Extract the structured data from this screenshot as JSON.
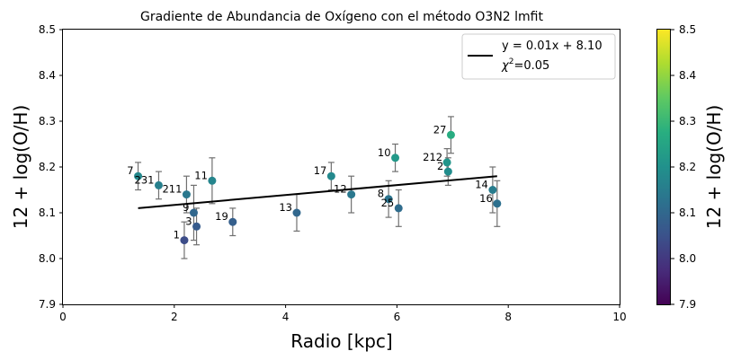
{
  "chart_data": {
    "type": "scatter",
    "title": "Gradiente de Abundancia de Oxígeno con el método O3N2 lmfit",
    "xlabel": "Radio [kpc]",
    "ylabel": "12 + log(O/H)",
    "xlim": [
      0,
      10
    ],
    "ylim": [
      7.9,
      8.5
    ],
    "xticks": [
      "0",
      "2",
      "4",
      "6",
      "8",
      "10"
    ],
    "yticks": [
      "7.9",
      "8.0",
      "8.1",
      "8.2",
      "8.3",
      "8.4",
      "8.5"
    ],
    "colormap": "viridis",
    "colorbar": {
      "label": "12 + log(O/H)",
      "range": [
        7.9,
        8.5
      ],
      "ticks": [
        "7.9",
        "8.0",
        "8.1",
        "8.2",
        "8.3",
        "8.4",
        "8.5"
      ]
    },
    "points": [
      {
        "label": "7",
        "x": 1.35,
        "y": 8.18,
        "err": 0.03
      },
      {
        "label": "231",
        "x": 1.72,
        "y": 8.16,
        "err": 0.03
      },
      {
        "label": "211",
        "x": 2.22,
        "y": 8.14,
        "err": 0.04
      },
      {
        "label": "1",
        "x": 2.18,
        "y": 8.04,
        "err": 0.04
      },
      {
        "label": "9",
        "x": 2.35,
        "y": 8.1,
        "err": 0.06
      },
      {
        "label": "3",
        "x": 2.4,
        "y": 8.07,
        "err": 0.04
      },
      {
        "label": "11",
        "x": 2.68,
        "y": 8.17,
        "err": 0.05
      },
      {
        "label": "19",
        "x": 3.05,
        "y": 8.08,
        "err": 0.03
      },
      {
        "label": "13",
        "x": 4.2,
        "y": 8.1,
        "err": 0.04
      },
      {
        "label": "17",
        "x": 4.82,
        "y": 8.18,
        "err": 0.03
      },
      {
        "label": "12",
        "x": 5.18,
        "y": 8.14,
        "err": 0.04
      },
      {
        "label": "10",
        "x": 5.97,
        "y": 8.22,
        "err": 0.03
      },
      {
        "label": "8",
        "x": 5.85,
        "y": 8.13,
        "err": 0.04
      },
      {
        "label": "25",
        "x": 6.03,
        "y": 8.11,
        "err": 0.04
      },
      {
        "label": "27",
        "x": 6.97,
        "y": 8.27,
        "err": 0.04
      },
      {
        "label": "212",
        "x": 6.9,
        "y": 8.21,
        "err": 0.03
      },
      {
        "label": "2",
        "x": 6.92,
        "y": 8.19,
        "err": 0.03
      },
      {
        "label": "14",
        "x": 7.72,
        "y": 8.15,
        "err": 0.05
      },
      {
        "label": "16",
        "x": 7.8,
        "y": 8.12,
        "err": 0.05
      }
    ],
    "fit": {
      "x": [
        1.35,
        7.8
      ],
      "y": [
        8.11,
        8.18
      ],
      "legend_equation": "y = 0.01x + 8.10",
      "legend_chi2": "=0.05",
      "legend_chi_symbol": "χ",
      "legend_chi_sup": "2"
    },
    "legend_position": "upper right",
    "colors": {
      "fit_line": "#000000",
      "error_bar": "#707070"
    }
  }
}
